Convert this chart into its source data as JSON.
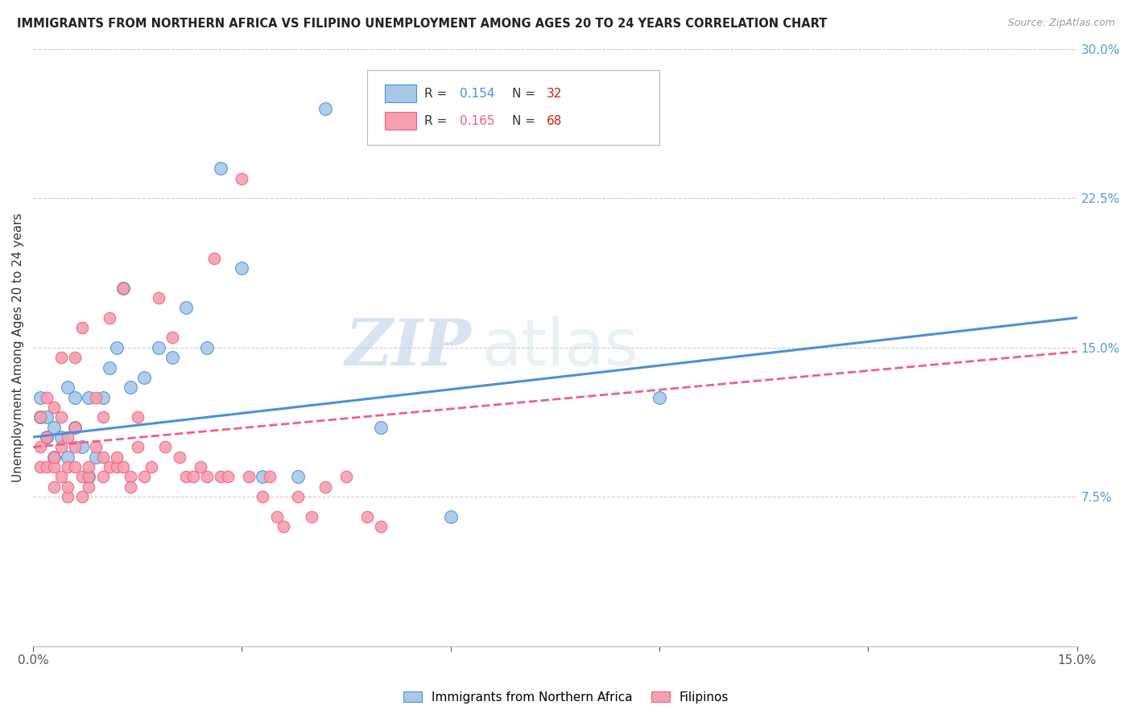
{
  "title": "IMMIGRANTS FROM NORTHERN AFRICA VS FILIPINO UNEMPLOYMENT AMONG AGES 20 TO 24 YEARS CORRELATION CHART",
  "source": "Source: ZipAtlas.com",
  "ylabel": "Unemployment Among Ages 20 to 24 years",
  "xlim": [
    0.0,
    0.15
  ],
  "ylim": [
    0.0,
    0.3
  ],
  "yticks_right": [
    0.0,
    0.075,
    0.15,
    0.225,
    0.3
  ],
  "ytick_labels_right": [
    "",
    "7.5%",
    "15.0%",
    "22.5%",
    "30.0%"
  ],
  "color_blue": "#a8c8e8",
  "color_pink": "#f4a0b0",
  "line_color_blue": "#4a90d9",
  "line_color_pink": "#f06080",
  "watermark_zip": "ZIP",
  "watermark_atlas": "atlas",
  "legend_label1": "Immigrants from Northern Africa",
  "legend_label2": "Filipinos",
  "blue_x": [
    0.001,
    0.001,
    0.002,
    0.002,
    0.003,
    0.003,
    0.004,
    0.005,
    0.005,
    0.006,
    0.006,
    0.007,
    0.008,
    0.008,
    0.009,
    0.01,
    0.011,
    0.012,
    0.013,
    0.014,
    0.016,
    0.018,
    0.02,
    0.022,
    0.025,
    0.027,
    0.03,
    0.033,
    0.038,
    0.042,
    0.05,
    0.06,
    0.09
  ],
  "blue_y": [
    0.115,
    0.125,
    0.105,
    0.115,
    0.095,
    0.11,
    0.105,
    0.13,
    0.095,
    0.11,
    0.125,
    0.1,
    0.085,
    0.125,
    0.095,
    0.125,
    0.14,
    0.15,
    0.18,
    0.13,
    0.135,
    0.15,
    0.145,
    0.17,
    0.15,
    0.24,
    0.19,
    0.085,
    0.085,
    0.27,
    0.11,
    0.065,
    0.125
  ],
  "pink_x": [
    0.001,
    0.001,
    0.001,
    0.002,
    0.002,
    0.002,
    0.003,
    0.003,
    0.003,
    0.003,
    0.004,
    0.004,
    0.004,
    0.004,
    0.005,
    0.005,
    0.005,
    0.005,
    0.006,
    0.006,
    0.006,
    0.006,
    0.007,
    0.007,
    0.007,
    0.008,
    0.008,
    0.008,
    0.009,
    0.009,
    0.01,
    0.01,
    0.01,
    0.011,
    0.011,
    0.012,
    0.012,
    0.013,
    0.013,
    0.014,
    0.014,
    0.015,
    0.015,
    0.016,
    0.017,
    0.018,
    0.019,
    0.02,
    0.021,
    0.022,
    0.023,
    0.024,
    0.025,
    0.026,
    0.027,
    0.028,
    0.03,
    0.031,
    0.033,
    0.034,
    0.035,
    0.036,
    0.038,
    0.04,
    0.042,
    0.045,
    0.048,
    0.05
  ],
  "pink_y": [
    0.1,
    0.115,
    0.09,
    0.09,
    0.105,
    0.125,
    0.08,
    0.09,
    0.095,
    0.12,
    0.085,
    0.1,
    0.115,
    0.145,
    0.075,
    0.08,
    0.09,
    0.105,
    0.09,
    0.1,
    0.11,
    0.145,
    0.075,
    0.085,
    0.16,
    0.08,
    0.085,
    0.09,
    0.1,
    0.125,
    0.085,
    0.095,
    0.115,
    0.09,
    0.165,
    0.09,
    0.095,
    0.09,
    0.18,
    0.085,
    0.08,
    0.1,
    0.115,
    0.085,
    0.09,
    0.175,
    0.1,
    0.155,
    0.095,
    0.085,
    0.085,
    0.09,
    0.085,
    0.195,
    0.085,
    0.085,
    0.235,
    0.085,
    0.075,
    0.085,
    0.065,
    0.06,
    0.075,
    0.065,
    0.08,
    0.085,
    0.065,
    0.06
  ],
  "blue_trend_x": [
    0.0,
    0.15
  ],
  "blue_trend_y": [
    0.105,
    0.165
  ],
  "pink_trend_x": [
    0.0,
    0.15
  ],
  "pink_trend_y": [
    0.1,
    0.148
  ]
}
